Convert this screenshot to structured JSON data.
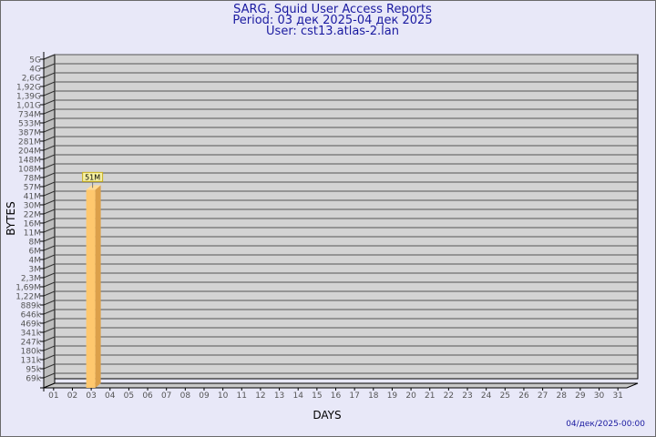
{
  "header": {
    "title": "SARG, Squid User Access Reports",
    "period": "Period: 03 дек 2025-04 дек 2025",
    "user": "User: cst13.atlas-2.lan"
  },
  "footer": {
    "timestamp": "04/дек/2025-00:00"
  },
  "colors": {
    "background": "#e8e8f8",
    "plot": "#d3d3d3",
    "bar": "#ffc86e",
    "bar_side": "#dca04a",
    "title": "#1a1aa0"
  },
  "chart_data": {
    "type": "bar",
    "xlabel": "DAYS",
    "ylabel": "BYTES",
    "y_scale": "log",
    "grid": true,
    "y_tick_labels": [
      "5G",
      "4G",
      "2,6G",
      "1,92G",
      "1,39G",
      "1,01G",
      "734M",
      "533M",
      "387M",
      "281M",
      "204M",
      "148M",
      "108M",
      "78M",
      "57M",
      "41M",
      "30M",
      "22M",
      "16M",
      "11M",
      "8M",
      "6M",
      "4M",
      "3M",
      "2,3M",
      "1,69M",
      "1,22M",
      "889k",
      "646k",
      "469k",
      "341k",
      "247k",
      "180k",
      "131k",
      "95k",
      "69k"
    ],
    "categories": [
      "01",
      "02",
      "03",
      "04",
      "05",
      "06",
      "07",
      "08",
      "09",
      "10",
      "11",
      "12",
      "13",
      "14",
      "15",
      "16",
      "17",
      "18",
      "19",
      "20",
      "21",
      "22",
      "23",
      "24",
      "25",
      "26",
      "27",
      "28",
      "29",
      "30",
      "31"
    ],
    "bars": [
      {
        "category": "03",
        "value": "51M",
        "label": "51M"
      }
    ]
  }
}
